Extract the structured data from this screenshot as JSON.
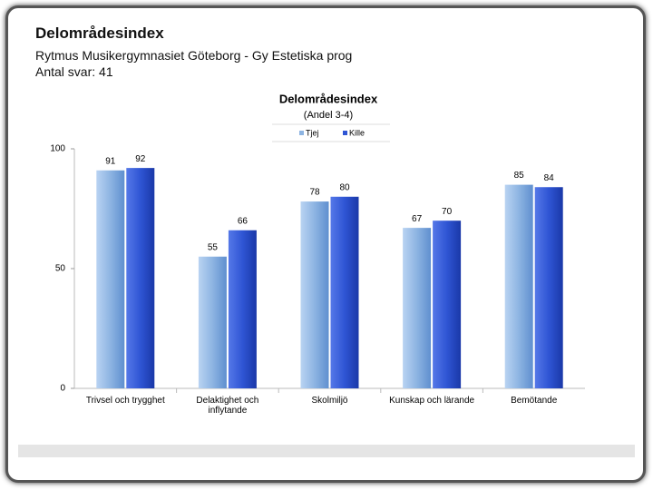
{
  "header": {
    "title": "Delområdesindex",
    "subtitle": "Rytmus Musikergymnasiet Göteborg - Gy Estetiska prog",
    "responses": "Antal svar: 41"
  },
  "chart_data": {
    "type": "bar",
    "title": "Delområdesindex",
    "subtitle": "(Andel 3-4)",
    "categories": [
      "Trivsel och trygghet",
      "Delaktighet och inflytande",
      "Skolmiljö",
      "Kunskap och lärande",
      "Bemötande"
    ],
    "series": [
      {
        "name": "Tjej",
        "color": "#8db4e2",
        "values": [
          91,
          55,
          78,
          67,
          85
        ]
      },
      {
        "name": "Kille",
        "color": "#2f55d4",
        "values": [
          92,
          66,
          80,
          70,
          84
        ]
      }
    ],
    "ylim": [
      0,
      100
    ],
    "yticks": [
      0,
      50,
      100
    ],
    "grid": false,
    "legend": "top"
  }
}
